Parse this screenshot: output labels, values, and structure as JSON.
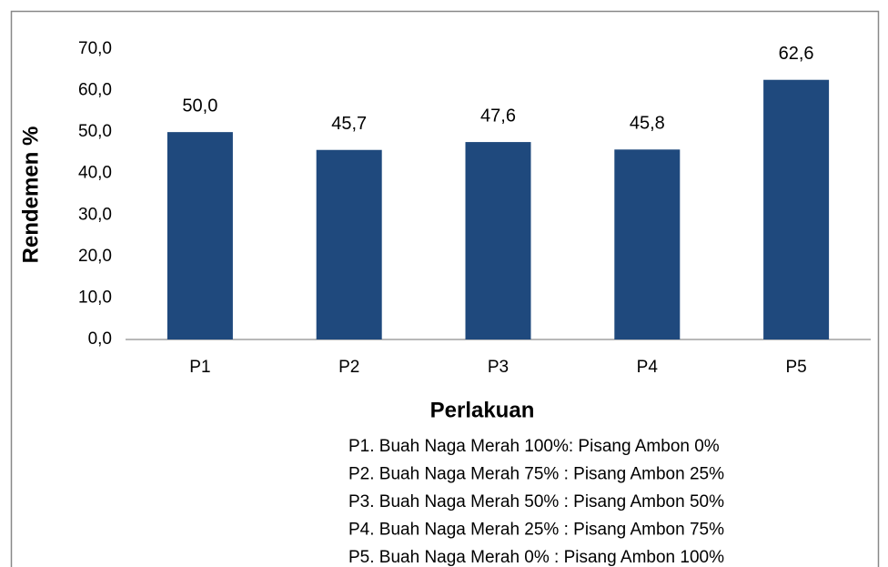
{
  "chart_data": {
    "type": "bar",
    "categories": [
      "P1",
      "P2",
      "P3",
      "P4",
      "P5"
    ],
    "values": [
      50.0,
      45.7,
      47.6,
      45.8,
      62.6
    ],
    "value_labels": [
      "50,0",
      "45,7",
      "47,6",
      "45,8",
      "62,6"
    ],
    "color": "#1f497d",
    "ylim": [
      0,
      70
    ],
    "yticks": [
      {
        "value": 0,
        "label": "0,0"
      },
      {
        "value": 10,
        "label": "10,0"
      },
      {
        "value": 20,
        "label": "20,0"
      },
      {
        "value": 30,
        "label": "30,0"
      },
      {
        "value": 40,
        "label": "40,0"
      },
      {
        "value": 50,
        "label": "50,0"
      },
      {
        "value": 60,
        "label": "60,0"
      },
      {
        "value": 70,
        "label": "70,0"
      }
    ],
    "grid": false,
    "y_label": "Rendemen %",
    "x_label": "Perlakuan",
    "notes": [
      "P1. Buah Naga Merah 100%: Pisang Ambon 0%",
      "P2. Buah Naga Merah 75% : Pisang Ambon 25%",
      "P3. Buah Naga Merah 50% : Pisang Ambon 50%",
      "P4. Buah Naga Merah 25% : Pisang Ambon 75%",
      "P5. Buah Naga Merah 0% : Pisang Ambon 100%"
    ]
  }
}
